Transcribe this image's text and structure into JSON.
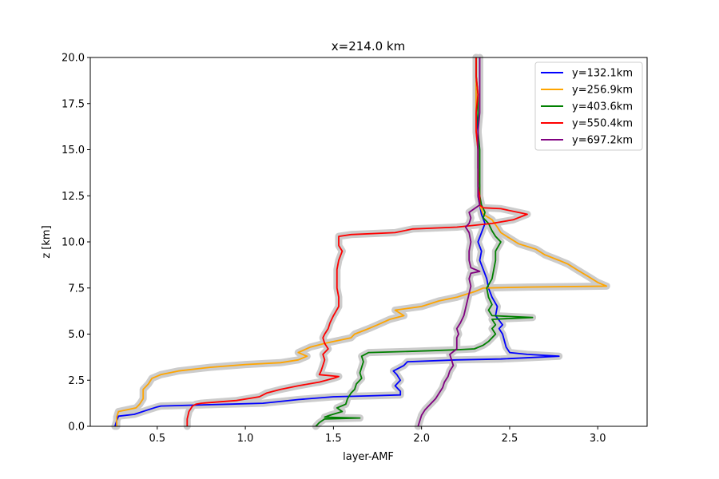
{
  "chart_data": {
    "type": "line",
    "title": "x=214.0 km",
    "xlabel": "layer-AMF",
    "ylabel": "z [km]",
    "xlim": [
      0.12,
      3.28
    ],
    "ylim": [
      0,
      20
    ],
    "xticks": [
      0.5,
      1.0,
      1.5,
      2.0,
      2.5,
      3.0
    ],
    "xtick_labels": [
      "0.5",
      "1.0",
      "1.5",
      "2.0",
      "2.5",
      "3.0"
    ],
    "yticks": [
      0,
      2.5,
      5,
      7.5,
      10,
      12.5,
      15,
      17.5,
      20
    ],
    "ytick_labels": [
      "0.0",
      "2.5",
      "5.0",
      "7.5",
      "10.0",
      "12.5",
      "15.0",
      "17.5",
      "20.0"
    ],
    "grid": false,
    "legend_position": "top-right",
    "uncertainty_band_color": "#cccccc",
    "series": [
      {
        "name": "y=132.1km",
        "color": "#0000ff",
        "points": [
          [
            0.26,
            0
          ],
          [
            0.27,
            0.3
          ],
          [
            0.28,
            0.55
          ],
          [
            0.37,
            0.65
          ],
          [
            0.45,
            0.9
          ],
          [
            0.5,
            1.05
          ],
          [
            0.52,
            1.1
          ],
          [
            0.9,
            1.2
          ],
          [
            1.1,
            1.25
          ],
          [
            1.3,
            1.45
          ],
          [
            1.5,
            1.6
          ],
          [
            1.7,
            1.65
          ],
          [
            1.88,
            1.7
          ],
          [
            1.88,
            1.9
          ],
          [
            1.85,
            2.2
          ],
          [
            1.88,
            2.5
          ],
          [
            1.86,
            2.8
          ],
          [
            1.84,
            3.0
          ],
          [
            1.9,
            3.3
          ],
          [
            1.92,
            3.5
          ],
          [
            2.2,
            3.6
          ],
          [
            2.45,
            3.65
          ],
          [
            2.78,
            3.8
          ],
          [
            2.6,
            3.9
          ],
          [
            2.5,
            4.0
          ],
          [
            2.48,
            4.3
          ],
          [
            2.46,
            5.0
          ],
          [
            2.44,
            5.3
          ],
          [
            2.46,
            5.5
          ],
          [
            2.42,
            6.0
          ],
          [
            2.43,
            6.5
          ],
          [
            2.4,
            7.0
          ],
          [
            2.38,
            7.5
          ],
          [
            2.37,
            8.0
          ],
          [
            2.35,
            8.5
          ],
          [
            2.33,
            9.0
          ],
          [
            2.34,
            9.5
          ],
          [
            2.32,
            10.0
          ],
          [
            2.34,
            10.5
          ],
          [
            2.36,
            11.0
          ],
          [
            2.34,
            11.5
          ],
          [
            2.33,
            12.0
          ],
          [
            2.32,
            12.5
          ],
          [
            2.33,
            13.0
          ],
          [
            2.32,
            14.0
          ],
          [
            2.32,
            15.0
          ],
          [
            2.32,
            16.0
          ],
          [
            2.31,
            17.0
          ],
          [
            2.31,
            18.0
          ],
          [
            2.31,
            19.0
          ],
          [
            2.31,
            20.0
          ]
        ]
      },
      {
        "name": "y=256.9km",
        "color": "#ffa500",
        "points": [
          [
            0.27,
            0
          ],
          [
            0.27,
            0.5
          ],
          [
            0.28,
            0.8
          ],
          [
            0.33,
            0.9
          ],
          [
            0.38,
            1.0
          ],
          [
            0.4,
            1.2
          ],
          [
            0.42,
            1.5
          ],
          [
            0.42,
            2.0
          ],
          [
            0.45,
            2.3
          ],
          [
            0.47,
            2.6
          ],
          [
            0.52,
            2.8
          ],
          [
            0.62,
            3.0
          ],
          [
            0.8,
            3.2
          ],
          [
            1.0,
            3.35
          ],
          [
            1.2,
            3.45
          ],
          [
            1.3,
            3.6
          ],
          [
            1.35,
            3.8
          ],
          [
            1.3,
            4.0
          ],
          [
            1.37,
            4.3
          ],
          [
            1.45,
            4.5
          ],
          [
            1.6,
            4.8
          ],
          [
            1.62,
            5.0
          ],
          [
            1.7,
            5.3
          ],
          [
            1.75,
            5.5
          ],
          [
            1.82,
            5.8
          ],
          [
            1.9,
            6.0
          ],
          [
            1.85,
            6.3
          ],
          [
            2.0,
            6.5
          ],
          [
            2.1,
            6.8
          ],
          [
            2.2,
            7.0
          ],
          [
            2.3,
            7.3
          ],
          [
            2.35,
            7.5
          ],
          [
            2.6,
            7.55
          ],
          [
            3.05,
            7.6
          ],
          [
            3.0,
            7.8
          ],
          [
            2.95,
            8.1
          ],
          [
            2.88,
            8.5
          ],
          [
            2.83,
            8.8
          ],
          [
            2.78,
            9.0
          ],
          [
            2.7,
            9.3
          ],
          [
            2.65,
            9.6
          ],
          [
            2.55,
            9.9
          ],
          [
            2.5,
            10.2
          ],
          [
            2.45,
            10.5
          ],
          [
            2.43,
            10.8
          ],
          [
            2.4,
            11.2
          ],
          [
            2.35,
            11.5
          ],
          [
            2.33,
            12.0
          ],
          [
            2.33,
            12.5
          ],
          [
            2.33,
            13.0
          ],
          [
            2.32,
            14.0
          ],
          [
            2.32,
            15.0
          ],
          [
            2.31,
            16.0
          ],
          [
            2.31,
            17.0
          ],
          [
            2.31,
            18.0
          ],
          [
            2.31,
            19.0
          ],
          [
            2.31,
            20.0
          ]
        ]
      },
      {
        "name": "y=403.6km",
        "color": "#008000",
        "points": [
          [
            1.4,
            0
          ],
          [
            1.42,
            0.2
          ],
          [
            1.45,
            0.4
          ],
          [
            1.65,
            0.45
          ],
          [
            1.45,
            0.5
          ],
          [
            1.48,
            0.6
          ],
          [
            1.55,
            0.8
          ],
          [
            1.52,
            1.0
          ],
          [
            1.57,
            1.2
          ],
          [
            1.58,
            1.5
          ],
          [
            1.6,
            1.8
          ],
          [
            1.62,
            2.0
          ],
          [
            1.63,
            2.3
          ],
          [
            1.66,
            2.6
          ],
          [
            1.65,
            2.9
          ],
          [
            1.66,
            3.2
          ],
          [
            1.67,
            3.5
          ],
          [
            1.66,
            3.8
          ],
          [
            1.7,
            4.0
          ],
          [
            1.9,
            4.05
          ],
          [
            2.05,
            4.1
          ],
          [
            2.2,
            4.15
          ],
          [
            2.3,
            4.2
          ],
          [
            2.35,
            4.4
          ],
          [
            2.38,
            4.6
          ],
          [
            2.4,
            4.8
          ],
          [
            2.42,
            5.0
          ],
          [
            2.4,
            5.3
          ],
          [
            2.42,
            5.5
          ],
          [
            2.4,
            5.8
          ],
          [
            2.63,
            5.9
          ],
          [
            2.4,
            6.0
          ],
          [
            2.38,
            6.3
          ],
          [
            2.4,
            6.6
          ],
          [
            2.38,
            7.0
          ],
          [
            2.37,
            7.5
          ],
          [
            2.4,
            8.0
          ],
          [
            2.41,
            8.5
          ],
          [
            2.42,
            9.0
          ],
          [
            2.42,
            9.5
          ],
          [
            2.45,
            10.0
          ],
          [
            2.42,
            10.3
          ],
          [
            2.4,
            10.6
          ],
          [
            2.38,
            11.0
          ],
          [
            2.35,
            11.3
          ],
          [
            2.36,
            11.6
          ],
          [
            2.34,
            12.0
          ],
          [
            2.33,
            12.5
          ],
          [
            2.33,
            13.0
          ],
          [
            2.33,
            14.0
          ],
          [
            2.33,
            15.0
          ],
          [
            2.32,
            16.0
          ],
          [
            2.32,
            17.0
          ],
          [
            2.32,
            18.0
          ],
          [
            2.31,
            19.0
          ],
          [
            2.31,
            20.0
          ]
        ]
      },
      {
        "name": "y=550.4km",
        "color": "#ff0000",
        "points": [
          [
            0.67,
            0
          ],
          [
            0.67,
            0.4
          ],
          [
            0.68,
            0.8
          ],
          [
            0.7,
            1.1
          ],
          [
            0.72,
            1.2
          ],
          [
            0.75,
            1.25
          ],
          [
            0.95,
            1.4
          ],
          [
            1.08,
            1.6
          ],
          [
            1.12,
            1.8
          ],
          [
            1.2,
            2.0
          ],
          [
            1.3,
            2.2
          ],
          [
            1.42,
            2.4
          ],
          [
            1.5,
            2.6
          ],
          [
            1.53,
            2.7
          ],
          [
            1.42,
            2.8
          ],
          [
            1.43,
            3.0
          ],
          [
            1.44,
            3.3
          ],
          [
            1.45,
            3.6
          ],
          [
            1.44,
            3.9
          ],
          [
            1.47,
            4.2
          ],
          [
            1.45,
            4.5
          ],
          [
            1.44,
            4.8
          ],
          [
            1.45,
            5.0
          ],
          [
            1.47,
            5.3
          ],
          [
            1.48,
            5.6
          ],
          [
            1.5,
            6.0
          ],
          [
            1.53,
            6.5
          ],
          [
            1.53,
            7.0
          ],
          [
            1.52,
            7.5
          ],
          [
            1.52,
            8.0
          ],
          [
            1.52,
            8.5
          ],
          [
            1.53,
            9.0
          ],
          [
            1.55,
            9.5
          ],
          [
            1.53,
            9.8
          ],
          [
            1.53,
            10.3
          ],
          [
            1.6,
            10.4
          ],
          [
            1.85,
            10.5
          ],
          [
            1.95,
            10.7
          ],
          [
            2.2,
            10.8
          ],
          [
            2.4,
            11.0
          ],
          [
            2.52,
            11.2
          ],
          [
            2.6,
            11.5
          ],
          [
            2.45,
            11.8
          ],
          [
            2.35,
            11.85
          ],
          [
            2.33,
            12.0
          ],
          [
            2.33,
            12.5
          ],
          [
            2.32,
            13.0
          ],
          [
            2.32,
            14.0
          ],
          [
            2.32,
            15.0
          ],
          [
            2.31,
            16.0
          ],
          [
            2.31,
            17.0
          ],
          [
            2.32,
            18.0
          ],
          [
            2.31,
            19.0
          ],
          [
            2.31,
            20.0
          ]
        ]
      },
      {
        "name": "y=697.2km",
        "color": "#800080",
        "points": [
          [
            1.98,
            0
          ],
          [
            1.99,
            0.3
          ],
          [
            2.0,
            0.6
          ],
          [
            2.02,
            0.9
          ],
          [
            2.05,
            1.2
          ],
          [
            2.08,
            1.5
          ],
          [
            2.1,
            1.8
          ],
          [
            2.12,
            2.1
          ],
          [
            2.13,
            2.4
          ],
          [
            2.15,
            2.7
          ],
          [
            2.16,
            3.0
          ],
          [
            2.18,
            3.3
          ],
          [
            2.17,
            3.6
          ],
          [
            2.16,
            3.9
          ],
          [
            2.2,
            4.2
          ],
          [
            2.2,
            4.5
          ],
          [
            2.2,
            4.8
          ],
          [
            2.21,
            5.0
          ],
          [
            2.2,
            5.3
          ],
          [
            2.22,
            5.6
          ],
          [
            2.24,
            6.0
          ],
          [
            2.25,
            6.4
          ],
          [
            2.26,
            6.8
          ],
          [
            2.27,
            7.2
          ],
          [
            2.28,
            7.6
          ],
          [
            2.27,
            8.0
          ],
          [
            2.28,
            8.3
          ],
          [
            2.33,
            8.4
          ],
          [
            2.28,
            8.6
          ],
          [
            2.27,
            9.0
          ],
          [
            2.27,
            9.5
          ],
          [
            2.28,
            10.0
          ],
          [
            2.27,
            10.5
          ],
          [
            2.25,
            10.8
          ],
          [
            2.27,
            11.0
          ],
          [
            2.28,
            11.3
          ],
          [
            2.27,
            11.6
          ],
          [
            2.3,
            11.8
          ],
          [
            2.33,
            12.0
          ],
          [
            2.32,
            12.5
          ],
          [
            2.32,
            13.0
          ],
          [
            2.32,
            14.0
          ],
          [
            2.32,
            15.0
          ],
          [
            2.32,
            16.0
          ],
          [
            2.33,
            17.0
          ],
          [
            2.33,
            18.0
          ],
          [
            2.33,
            19.0
          ],
          [
            2.33,
            20.0
          ]
        ]
      }
    ]
  }
}
